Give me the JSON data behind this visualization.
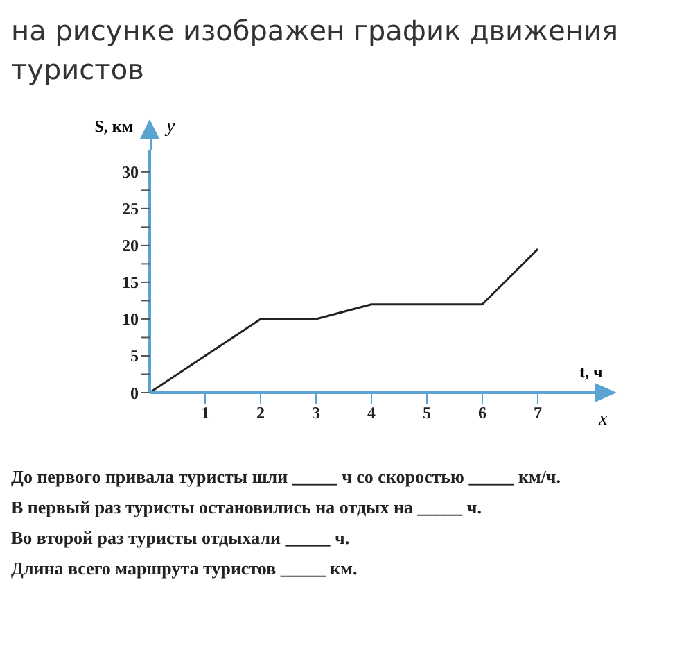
{
  "chart_data": {
    "type": "line",
    "title": "на рисунке изображен график движения туристов",
    "xlabel": "t, ч",
    "ylabel": "S, км",
    "annotations": [
      "y",
      "x",
      "До первого привала туристы шли _____ ч со скоростью _____ км/ч.",
      "В первый раз туристы остановились на отдых на _____ ч.",
      "Во второй раз туристы отдыхали _____ ч.",
      "Длина всего маршрута туристов _____ км."
    ],
    "x": [
      0,
      2,
      3,
      4,
      6,
      7
    ],
    "series": [
      {
        "color": "#222222",
        "values": [
          0,
          10,
          10,
          12,
          12,
          19.5
        ]
      }
    ],
    "xlim": [
      0,
      8
    ],
    "xticks": [
      1,
      2,
      3,
      4,
      5,
      6,
      7
    ],
    "ylim": [
      0,
      33
    ],
    "yticks": [
      0,
      {
        "value": 2.5,
        "label": null
      },
      5,
      {
        "value": 7.5,
        "label": null
      },
      10,
      {
        "value": 12.5,
        "label": null
      },
      15,
      {
        "value": 17.5,
        "label": null
      },
      20,
      {
        "value": 22.5,
        "label": null
      },
      25,
      {
        "value": 27.5,
        "label": null
      },
      30
    ],
    "grid": false,
    "legend": false,
    "marker": "none",
    "line_style": "solid"
  }
}
